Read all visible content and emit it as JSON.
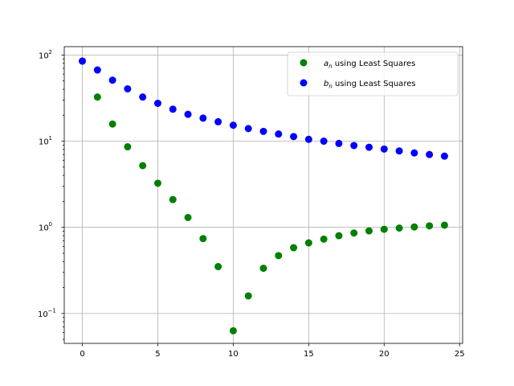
{
  "chart_data": {
    "type": "scatter",
    "xlim": [
      -1.2,
      25.2
    ],
    "ylim": [
      0.045,
      125
    ],
    "yscale": "log",
    "grid": true,
    "legend_placement": "top-right",
    "x_ticks": [
      0,
      5,
      10,
      15,
      20,
      25
    ],
    "y_ticks": [
      {
        "value": 0.1,
        "base": "10",
        "exp": "−1"
      },
      {
        "value": 1,
        "base": "10",
        "exp": "0"
      },
      {
        "value": 10,
        "base": "10",
        "exp": "1"
      },
      {
        "value": 100,
        "base": "10",
        "exp": "2"
      }
    ],
    "series": [
      {
        "name": "a_n using Least Squares",
        "legend_sym": "a",
        "legend_sub": "n",
        "legend_rest": " using Least Squares",
        "color": "#008000",
        "x": [
          0,
          1,
          2,
          3,
          4,
          5,
          6,
          7,
          8,
          9,
          10,
          11,
          12,
          13,
          14,
          15,
          16,
          17,
          18,
          19,
          20,
          21,
          22,
          23,
          24
        ],
        "y": [
          85,
          32.5,
          15.8,
          8.6,
          5.2,
          3.25,
          2.1,
          1.3,
          0.74,
          0.35,
          0.063,
          0.16,
          0.335,
          0.47,
          0.58,
          0.66,
          0.73,
          0.8,
          0.86,
          0.91,
          0.95,
          0.98,
          1.01,
          1.04,
          1.06
        ]
      },
      {
        "name": "b_n using Least Squares",
        "legend_sym": "b",
        "legend_sub": "n",
        "legend_rest": " using Least Squares",
        "color": "#0000ff",
        "x": [
          0,
          1,
          2,
          3,
          4,
          5,
          6,
          7,
          8,
          9,
          10,
          11,
          12,
          13,
          14,
          15,
          16,
          17,
          18,
          19,
          20,
          21,
          22,
          23,
          24
        ],
        "y": [
          85,
          67,
          51,
          40.5,
          32.5,
          27.5,
          23.5,
          20.5,
          18.5,
          16.8,
          15.3,
          14.0,
          13.0,
          12.1,
          11.3,
          10.5,
          10.0,
          9.4,
          8.9,
          8.5,
          8.1,
          7.7,
          7.3,
          7.0,
          6.7
        ]
      }
    ]
  }
}
